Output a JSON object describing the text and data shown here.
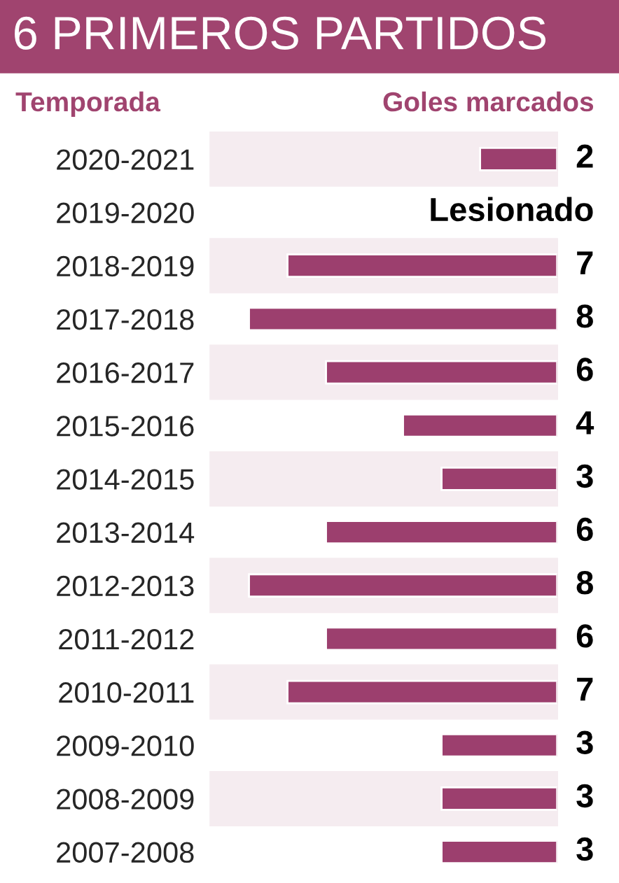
{
  "chart_data": {
    "type": "bar",
    "orientation": "horizontal",
    "title": "6 PRIMEROS PARTIDOS",
    "ylabel": "Temporada",
    "xlabel": "Goles marcados",
    "categories": [
      "2020-2021",
      "2019-2020",
      "2018-2019",
      "2017-2018",
      "2016-2017",
      "2015-2016",
      "2014-2015",
      "2013-2014",
      "2012-2013",
      "2011-2012",
      "2010-2011",
      "2009-2010",
      "2008-2009",
      "2007-2008"
    ],
    "values": [
      2,
      null,
      7,
      8,
      6,
      4,
      3,
      6,
      8,
      6,
      7,
      3,
      3,
      3
    ],
    "value_labels": [
      "2",
      "Lesionado",
      "7",
      "8",
      "6",
      "4",
      "3",
      "6",
      "8",
      "6",
      "7",
      "3",
      "3",
      "3"
    ],
    "color": "#9c3f6e",
    "xlim": [
      9,
      0
    ],
    "tick_labels": "y",
    "grid": false,
    "legend": false
  }
}
